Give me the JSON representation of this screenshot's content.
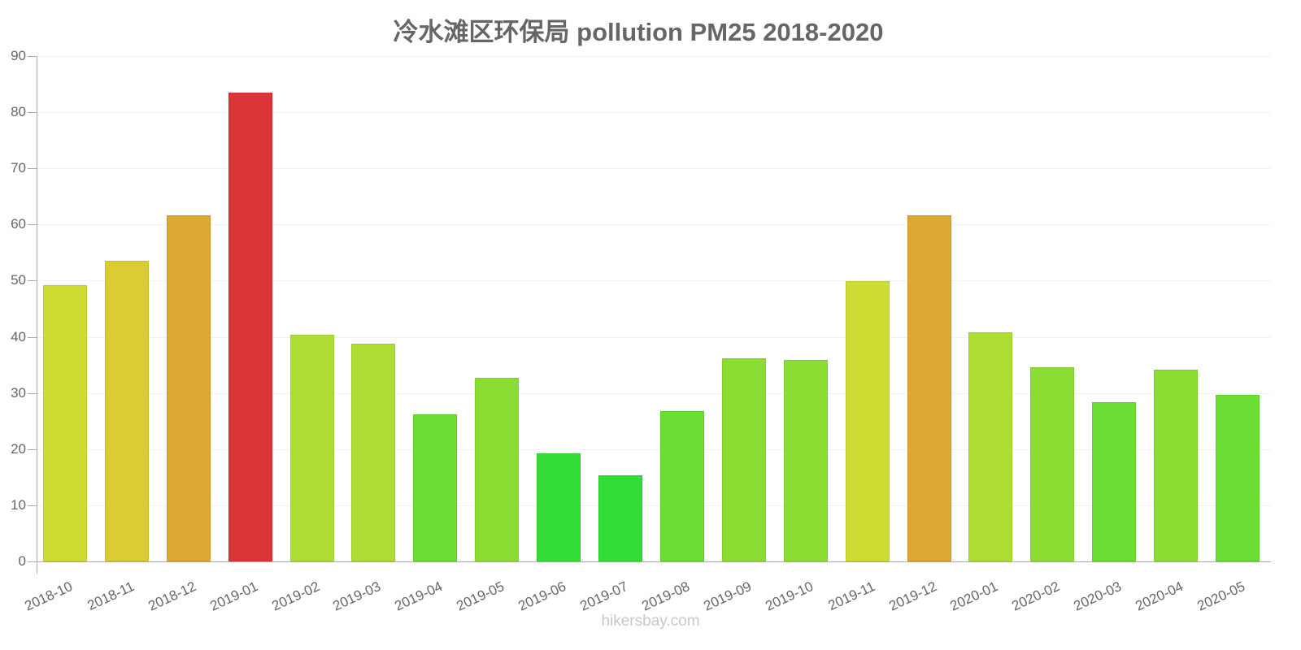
{
  "chart_data": {
    "type": "bar",
    "title": "冷水滩区环保局 pollution PM25 2018-2020",
    "xlabel": "",
    "ylabel": "",
    "ylim": [
      0,
      90
    ],
    "yticks": [
      0,
      10,
      20,
      30,
      40,
      50,
      60,
      70,
      80,
      90
    ],
    "grid": true,
    "legend": null,
    "categories": [
      "2018-10",
      "2018-11",
      "2018-12",
      "2019-01",
      "2019-02",
      "2019-03",
      "2019-04",
      "2019-05",
      "2019-06",
      "2019-07",
      "2019-08",
      "2019-09",
      "2019-10",
      "2019-11",
      "2019-12",
      "2020-01",
      "2020-02",
      "2020-03",
      "2020-04",
      "2020-05"
    ],
    "values": [
      49.2,
      53.5,
      61.6,
      83.5,
      40.4,
      38.8,
      26.2,
      32.7,
      19.3,
      15.4,
      26.8,
      36.2,
      35.9,
      49.9,
      61.7,
      40.8,
      34.6,
      28.3,
      34.2,
      29.6
    ],
    "colors": [
      "#cfdc33",
      "#dccb33",
      "#dca833",
      "#dc3535",
      "#aedd33",
      "#aedd33",
      "#6bdd33",
      "#8cdd33",
      "#33dd38",
      "#33dd38",
      "#6bdd33",
      "#8cdd33",
      "#8cdd33",
      "#cfdc33",
      "#dca833",
      "#aedd33",
      "#8cdd33",
      "#6bdd33",
      "#8cdd33",
      "#6bdd33"
    ]
  },
  "watermark": "hikersbay.com"
}
